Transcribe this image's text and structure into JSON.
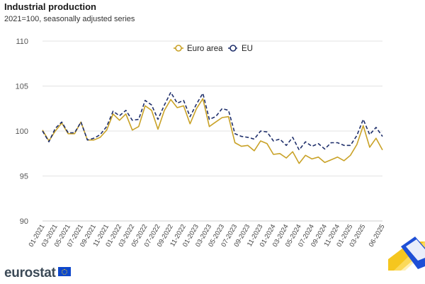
{
  "header": {
    "title": "Industrial production",
    "subtitle": "2021=100, seasonally adjusted series"
  },
  "branding": {
    "logo_text": "eurostat"
  },
  "colors": {
    "euro_area": "#c9a227",
    "eu": "#1f2f6b",
    "grid": "#e3e3e3",
    "deco_blue": "#1e4fd6",
    "deco_yellow": "#f4c312"
  },
  "chart_data": {
    "type": "line",
    "title": "",
    "xlabel": "",
    "ylabel": "",
    "ylim": [
      90,
      110
    ],
    "yticks": [
      "110",
      "105",
      "100",
      "95",
      "90"
    ],
    "grid": true,
    "legend": "top-center",
    "x": [
      "01-2021",
      "02-2021",
      "03-2021",
      "04-2021",
      "05-2021",
      "06-2021",
      "07-2021",
      "08-2021",
      "09-2021",
      "10-2021",
      "11-2021",
      "12-2021",
      "01-2022",
      "02-2022",
      "03-2022",
      "04-2022",
      "05-2022",
      "06-2022",
      "07-2022",
      "08-2022",
      "09-2022",
      "10-2022",
      "11-2022",
      "12-2022",
      "01-2023",
      "02-2023",
      "03-2023",
      "04-2023",
      "05-2023",
      "06-2023",
      "07-2023",
      "08-2023",
      "09-2023",
      "10-2023",
      "11-2023",
      "12-2023",
      "01-2024",
      "02-2024",
      "03-2024",
      "04-2024",
      "05-2024",
      "06-2024",
      "07-2024",
      "08-2024",
      "09-2024",
      "10-2024",
      "11-2024",
      "12-2024",
      "01-2025",
      "02-2025",
      "03-2025",
      "04-2025",
      "05-2025",
      "06-2025"
    ],
    "xtick_labels": [
      "01-2021",
      "03-2021",
      "05-2021",
      "07-2021",
      "09-2021",
      "11-2021",
      "01-2022",
      "03-2022",
      "05-2022",
      "07-2022",
      "09-2022",
      "11-2022",
      "01-2023",
      "03-2023",
      "05-2023",
      "07-2023",
      "09-2023",
      "11-2023",
      "01-2024",
      "03-2024",
      "05-2024",
      "07-2024",
      "09-2024",
      "11-2024",
      "01-2025",
      "03-2025",
      "06-2025"
    ],
    "series": [
      {
        "name": "Euro area",
        "style": "solid",
        "values": [
          100.1,
          98.9,
          100.0,
          100.9,
          99.7,
          99.7,
          101.0,
          99.0,
          99.0,
          99.3,
          100.1,
          101.9,
          101.2,
          101.9,
          100.1,
          100.5,
          102.8,
          102.3,
          100.2,
          102.3,
          103.5,
          102.6,
          102.8,
          100.8,
          102.5,
          103.6,
          100.5,
          101.0,
          101.5,
          101.6,
          98.7,
          98.3,
          98.4,
          97.8,
          98.9,
          98.6,
          97.4,
          97.5,
          97.0,
          97.7,
          96.4,
          97.3,
          96.9,
          97.1,
          96.5,
          96.8,
          97.1,
          96.7,
          97.3,
          98.5,
          100.6,
          98.2,
          99.2,
          97.9
        ]
      },
      {
        "name": "EU",
        "style": "dashed",
        "values": [
          100.0,
          98.8,
          100.3,
          101.0,
          99.8,
          99.8,
          101.0,
          99.0,
          99.2,
          99.6,
          100.5,
          102.2,
          101.7,
          102.3,
          101.2,
          101.3,
          103.4,
          102.9,
          101.3,
          102.9,
          104.3,
          103.1,
          103.4,
          101.6,
          103.0,
          104.2,
          101.3,
          101.6,
          102.5,
          102.3,
          99.7,
          99.4,
          99.3,
          99.1,
          100.0,
          99.9,
          98.9,
          99.1,
          98.4,
          99.3,
          97.9,
          98.8,
          98.3,
          98.6,
          98.0,
          98.7,
          98.7,
          98.4,
          98.4,
          99.5,
          101.3,
          99.6,
          100.4,
          99.4
        ]
      }
    ]
  }
}
